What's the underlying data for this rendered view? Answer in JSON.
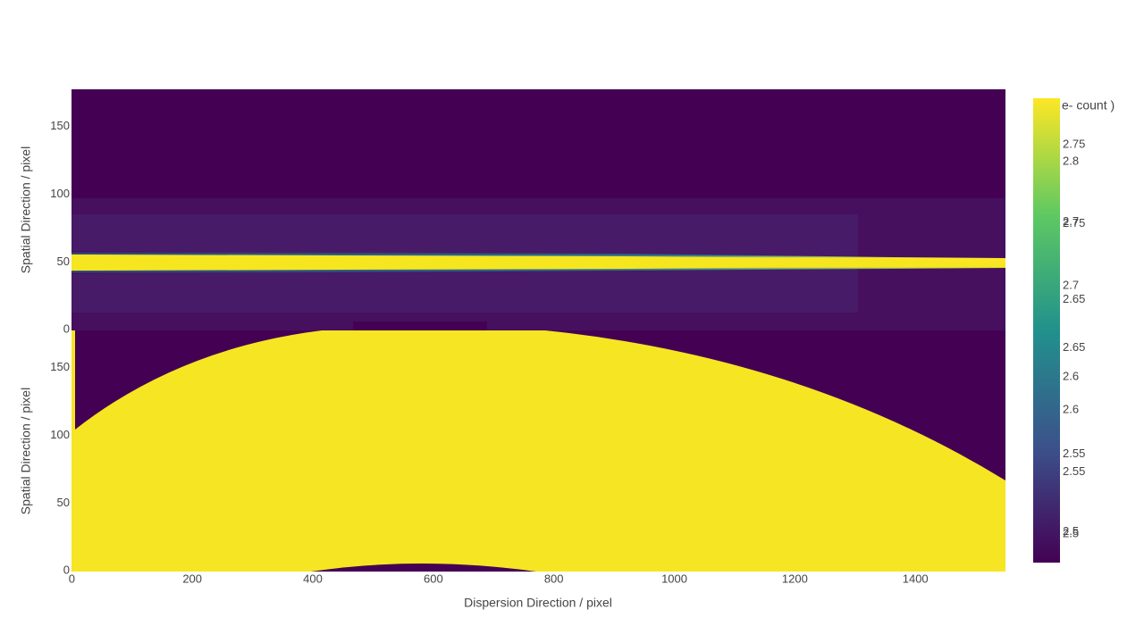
{
  "chart_data": [
    {
      "type": "heatmap",
      "ylabel": "Spatial Direction / pixel",
      "xlim": [
        -0.5,
        1549.5
      ],
      "xticks": [
        0,
        200,
        400,
        600,
        800,
        1000,
        1200,
        1400
      ],
      "ylim": [
        -0.5,
        177.5
      ],
      "yticks": [
        0,
        50,
        100,
        150
      ]
    },
    {
      "type": "heatmap",
      "ylabel": "Spatial Direction / pixel",
      "xlabel": "Dispersion Direction / pixel",
      "xlim": [
        -0.5,
        1549.5
      ],
      "xticks": [
        0,
        200,
        400,
        600,
        800,
        1000,
        1200,
        1400
      ],
      "ylim": [
        -0.5,
        177.5
      ],
      "yticks": [
        0,
        50,
        100,
        150
      ]
    }
  ],
  "colorbar": {
    "title": "e- count )",
    "scales": [
      {
        "lim": [
          2.477,
          2.851
        ],
        "ticks": [
          2.5,
          2.55,
          2.6,
          2.65,
          2.7,
          2.75,
          2.8
        ]
      },
      {
        "lim": [
          2.48,
          2.78
        ],
        "ticks": [
          2.5,
          2.55,
          2.6,
          2.65,
          2.7,
          2.75
        ]
      }
    ]
  }
}
